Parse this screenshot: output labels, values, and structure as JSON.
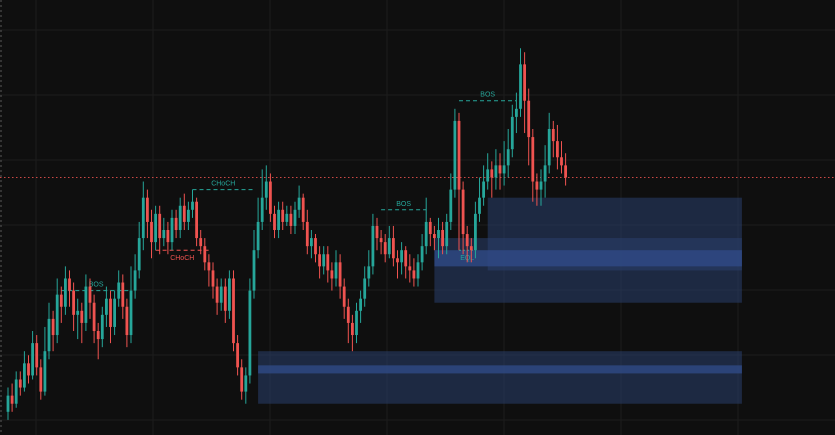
{
  "chart_data": {
    "type": "candlestick",
    "title": "",
    "xlabel": "",
    "ylabel": "",
    "grid": true,
    "ylim": [
      0,
      100
    ],
    "colors": {
      "background": "#0f0f0f",
      "grid": "#1c1c1c",
      "up": "#26a69a",
      "down": "#ef5350",
      "zone_fill": "#2a3f6e",
      "zone_band": "#2f4a86",
      "label_bull": "#26a69a",
      "label_bear": "#ef5350",
      "current_price_line": "#ef5350"
    },
    "current_price": 63,
    "candles": [
      [
        1,
        5,
        9,
        3,
        11
      ],
      [
        2,
        9,
        7,
        5,
        12
      ],
      [
        3,
        7,
        13,
        6,
        15
      ],
      [
        4,
        13,
        11,
        9,
        15
      ],
      [
        5,
        11,
        17,
        10,
        20
      ],
      [
        6,
        17,
        14,
        12,
        19
      ],
      [
        7,
        14,
        22,
        13,
        25
      ],
      [
        8,
        22,
        16,
        14,
        24
      ],
      [
        9,
        16,
        10,
        8,
        18
      ],
      [
        10,
        10,
        20,
        9,
        26
      ],
      [
        11,
        20,
        28,
        18,
        32
      ],
      [
        12,
        28,
        24,
        20,
        30
      ],
      [
        13,
        24,
        34,
        22,
        38
      ],
      [
        14,
        34,
        31,
        27,
        36
      ],
      [
        15,
        31,
        38,
        29,
        41
      ],
      [
        16,
        38,
        35,
        31,
        40
      ],
      [
        17,
        35,
        29,
        25,
        37
      ],
      [
        18,
        29,
        30,
        23,
        33
      ],
      [
        19,
        30,
        27,
        22,
        32
      ],
      [
        20,
        27,
        36,
        25,
        39
      ],
      [
        21,
        36,
        32,
        28,
        38
      ],
      [
        22,
        32,
        25,
        22,
        34
      ],
      [
        23,
        25,
        23,
        18,
        27
      ],
      [
        24,
        23,
        29,
        21,
        31
      ],
      [
        25,
        29,
        33,
        26,
        36
      ],
      [
        26,
        33,
        26,
        22,
        35
      ],
      [
        27,
        26,
        33,
        24,
        35
      ],
      [
        28,
        33,
        37,
        31,
        40
      ],
      [
        29,
        37,
        31,
        28,
        39
      ],
      [
        30,
        31,
        24,
        21,
        33
      ],
      [
        31,
        24,
        35,
        22,
        41
      ],
      [
        32,
        35,
        40,
        33,
        44
      ],
      [
        33,
        40,
        48,
        38,
        52
      ],
      [
        34,
        48,
        58,
        45,
        62
      ],
      [
        35,
        58,
        52,
        48,
        60
      ],
      [
        36,
        52,
        47,
        43,
        55
      ],
      [
        37,
        47,
        54,
        45,
        56
      ],
      [
        38,
        54,
        48,
        44,
        56
      ],
      [
        39,
        48,
        50,
        46,
        53
      ],
      [
        40,
        50,
        47,
        44,
        52
      ],
      [
        41,
        47,
        53,
        45,
        55
      ],
      [
        42,
        53,
        50,
        48,
        55
      ],
      [
        43,
        50,
        56,
        48,
        58
      ],
      [
        44,
        56,
        52,
        50,
        59
      ],
      [
        45,
        52,
        55,
        50,
        57
      ],
      [
        46,
        55,
        57,
        53,
        60
      ],
      [
        47,
        57,
        48,
        46,
        58
      ],
      [
        48,
        48,
        46,
        44,
        50
      ],
      [
        49,
        46,
        42,
        40,
        48
      ],
      [
        50,
        42,
        40,
        36,
        44
      ],
      [
        51,
        40,
        36,
        33,
        42
      ],
      [
        52,
        36,
        32,
        29,
        38
      ],
      [
        53,
        32,
        36,
        30,
        38
      ],
      [
        54,
        36,
        30,
        27,
        38
      ],
      [
        55,
        30,
        38,
        28,
        40
      ],
      [
        56,
        38,
        22,
        20,
        40
      ],
      [
        57,
        22,
        16,
        14,
        24
      ],
      [
        58,
        16,
        10,
        8,
        18
      ],
      [
        59,
        10,
        14,
        7,
        16
      ],
      [
        60,
        14,
        35,
        12,
        38
      ],
      [
        61,
        35,
        45,
        33,
        50
      ],
      [
        62,
        45,
        52,
        43,
        58
      ],
      [
        63,
        52,
        58,
        50,
        65
      ],
      [
        64,
        58,
        62,
        55,
        66
      ],
      [
        65,
        62,
        54,
        52,
        64
      ],
      [
        66,
        54,
        50,
        48,
        56
      ],
      [
        67,
        50,
        55,
        48,
        57
      ],
      [
        68,
        55,
        52,
        50,
        57
      ],
      [
        69,
        52,
        54,
        51,
        56
      ],
      [
        70,
        54,
        51,
        49,
        56
      ],
      [
        71,
        51,
        55,
        49,
        57
      ],
      [
        72,
        55,
        58,
        53,
        61
      ],
      [
        73,
        58,
        52,
        50,
        59
      ],
      [
        74,
        52,
        46,
        44,
        55
      ],
      [
        75,
        46,
        48,
        43,
        50
      ],
      [
        76,
        48,
        44,
        42,
        49
      ],
      [
        77,
        44,
        41,
        38,
        46
      ],
      [
        78,
        41,
        44,
        39,
        46
      ],
      [
        79,
        44,
        40,
        37,
        46
      ],
      [
        80,
        40,
        38,
        35,
        42
      ],
      [
        81,
        38,
        42,
        36,
        45
      ],
      [
        82,
        42,
        36,
        33,
        44
      ],
      [
        83,
        36,
        31,
        28,
        38
      ],
      [
        84,
        31,
        27,
        22,
        33
      ],
      [
        85,
        27,
        24,
        20,
        29
      ],
      [
        86,
        24,
        30,
        22,
        32
      ],
      [
        87,
        30,
        33,
        27,
        35
      ],
      [
        88,
        33,
        38,
        31,
        41
      ],
      [
        89,
        38,
        41,
        36,
        45
      ],
      [
        90,
        41,
        51,
        39,
        54
      ],
      [
        91,
        51,
        48,
        45,
        53
      ],
      [
        92,
        48,
        47,
        44,
        50
      ],
      [
        93,
        47,
        44,
        42,
        49
      ],
      [
        94,
        44,
        48,
        43,
        51
      ],
      [
        95,
        48,
        43,
        41,
        51
      ],
      [
        96,
        43,
        42,
        38,
        45
      ],
      [
        97,
        42,
        45,
        39,
        47
      ],
      [
        98,
        45,
        41,
        38,
        46
      ],
      [
        99,
        41,
        40,
        37,
        44
      ],
      [
        100,
        40,
        38,
        36,
        43
      ],
      [
        101,
        38,
        42,
        36,
        44
      ],
      [
        102,
        42,
        46,
        40,
        49
      ],
      [
        103,
        46,
        52,
        44,
        58
      ],
      [
        104,
        52,
        49,
        46,
        53
      ],
      [
        105,
        49,
        48,
        45,
        51
      ],
      [
        106,
        48,
        50,
        43,
        53
      ],
      [
        107,
        50,
        46,
        44,
        52
      ],
      [
        108,
        46,
        52,
        44,
        54
      ],
      [
        109,
        52,
        60,
        50,
        64
      ],
      [
        110,
        60,
        77,
        58,
        80
      ],
      [
        111,
        77,
        60,
        45,
        79
      ],
      [
        112,
        60,
        49,
        44,
        62
      ],
      [
        113,
        49,
        46,
        42,
        51
      ],
      [
        114,
        46,
        45,
        42,
        48
      ],
      [
        115,
        45,
        54,
        43,
        57
      ],
      [
        116,
        54,
        58,
        52,
        63
      ],
      [
        117,
        58,
        62,
        56,
        66
      ],
      [
        118,
        62,
        65,
        60,
        69
      ],
      [
        119,
        65,
        63,
        58,
        67
      ],
      [
        120,
        63,
        66,
        60,
        70
      ],
      [
        121,
        66,
        64,
        60,
        69
      ],
      [
        122,
        64,
        66,
        61,
        72
      ],
      [
        123,
        66,
        70,
        63,
        75
      ],
      [
        124,
        70,
        78,
        68,
        81
      ],
      [
        125,
        78,
        80,
        74,
        84
      ],
      [
        126,
        80,
        91,
        78,
        95
      ],
      [
        127,
        91,
        82,
        74,
        94
      ],
      [
        128,
        82,
        73,
        66,
        85
      ],
      [
        129,
        73,
        62,
        57,
        75
      ],
      [
        130,
        62,
        60,
        56,
        64
      ],
      [
        131,
        60,
        62,
        56,
        65
      ],
      [
        132,
        62,
        66,
        58,
        71
      ],
      [
        133,
        66,
        75,
        64,
        79
      ],
      [
        134,
        75,
        72,
        68,
        77
      ],
      [
        135,
        72,
        68,
        65,
        76
      ],
      [
        136,
        68,
        66,
        64,
        72
      ],
      [
        137,
        66,
        63,
        61,
        69
      ]
    ],
    "zones": [
      {
        "x_start": 62,
        "x_end": 180,
        "y_bottom": 7,
        "y_top": 20
      },
      {
        "x_start": 105,
        "x_end": 180,
        "y_bottom": 32,
        "y_top": 48
      },
      {
        "x_start": 118,
        "x_end": 180,
        "y_bottom": 40,
        "y_top": 58
      }
    ],
    "zone_bands": [
      {
        "x_start": 62,
        "x_end": 180,
        "y_bottom": 14.5,
        "y_top": 16.5
      },
      {
        "x_start": 105,
        "x_end": 180,
        "y_bottom": 41,
        "y_top": 45
      }
    ],
    "structure_lines": [
      {
        "label": "BOS",
        "kind": "bull",
        "x_start": 14,
        "x_end": 31,
        "y": 35
      },
      {
        "label": "CHoCH",
        "kind": "bear",
        "x_start": 37,
        "x_end": 50,
        "y": 45
      },
      {
        "label": "CHoCH",
        "kind": "bull",
        "x_start": 46,
        "x_end": 61,
        "y": 60
      },
      {
        "label": "BOS",
        "kind": "bull",
        "x_start": 92,
        "x_end": 103,
        "y": 55
      },
      {
        "label": "BOS",
        "kind": "bull",
        "x_start": 111,
        "x_end": 125,
        "y": 82
      },
      {
        "label": "EQL",
        "kind": "bull",
        "x_start": 111,
        "x_end": 115,
        "y": 45
      }
    ]
  }
}
